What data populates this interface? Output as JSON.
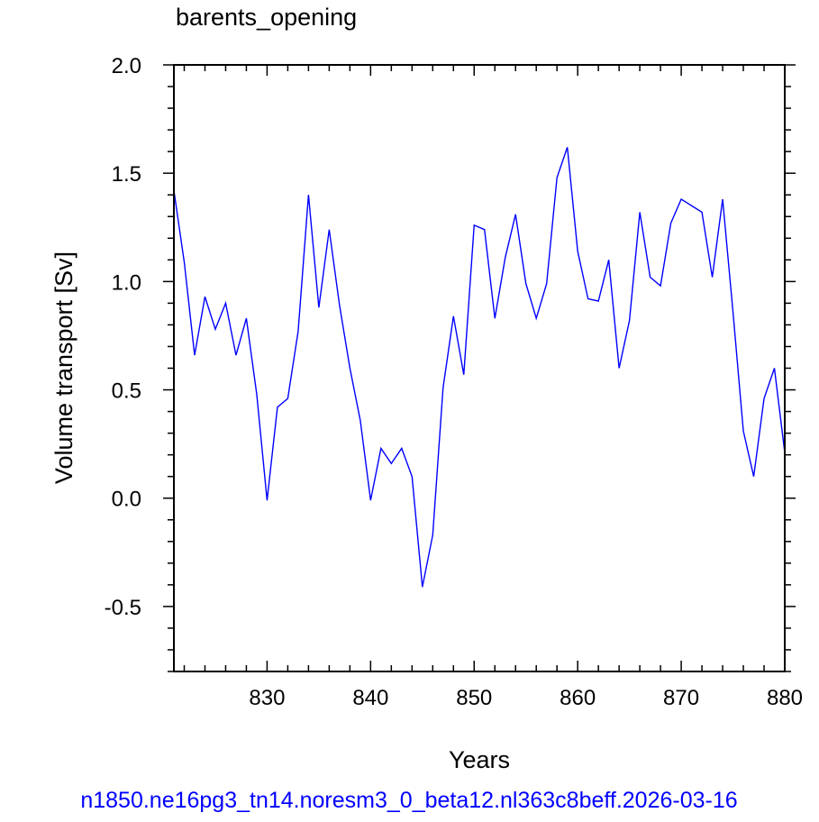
{
  "chart_data": {
    "type": "line",
    "title": "barents_opening",
    "xlabel": "Years",
    "ylabel": "Volume transport [Sv]",
    "xlim": [
      821,
      880
    ],
    "ylim": [
      -0.8,
      2.0
    ],
    "x_ticks": [
      830,
      840,
      850,
      860,
      870,
      880
    ],
    "x_tick_labels": [
      "830",
      "840",
      "850",
      "860",
      "870",
      "880"
    ],
    "y_ticks": [
      -0.5,
      0.0,
      0.5,
      1.0,
      1.5,
      2.0
    ],
    "y_tick_labels": [
      "-0.5",
      "0.0",
      "0.5",
      "1.0",
      "1.5",
      "2.0"
    ],
    "grid": false,
    "series": [
      {
        "color": "#0000ff",
        "x": [
          821,
          822,
          823,
          824,
          825,
          826,
          827,
          828,
          829,
          830,
          831,
          832,
          833,
          834,
          835,
          836,
          837,
          838,
          839,
          840,
          841,
          842,
          843,
          844,
          845,
          846,
          847,
          848,
          849,
          850,
          851,
          852,
          853,
          854,
          855,
          856,
          857,
          858,
          859,
          860,
          861,
          862,
          863,
          864,
          865,
          866,
          867,
          868,
          869,
          870,
          871,
          872,
          873,
          874,
          875,
          876,
          877,
          878,
          879,
          880
        ],
        "values": [
          1.42,
          1.09,
          0.66,
          0.93,
          0.78,
          0.9,
          0.66,
          0.83,
          0.48,
          -0.01,
          0.42,
          0.46,
          0.77,
          1.4,
          0.88,
          1.24,
          0.89,
          0.6,
          0.36,
          -0.01,
          0.23,
          0.16,
          0.23,
          0.1,
          -0.41,
          -0.17,
          0.51,
          0.84,
          0.57,
          1.26,
          1.24,
          0.83,
          1.11,
          1.31,
          0.99,
          0.83,
          0.99,
          1.48,
          1.62,
          1.14,
          0.92,
          0.91,
          1.1,
          0.6,
          0.82,
          1.32,
          1.02,
          0.98,
          1.27,
          1.38,
          1.35,
          1.32,
          1.02,
          1.38,
          0.86,
          0.31,
          0.1,
          0.46,
          0.6,
          0.21
        ]
      }
    ]
  },
  "footer": {
    "caption": "n1850.ne16pg3_tn14.noresm3_0_beta12.nl363c8beff.2026-03-16",
    "color": "#0000ff"
  }
}
